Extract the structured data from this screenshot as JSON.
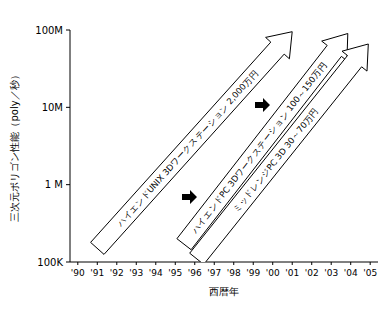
{
  "chart_data": {
    "type": "arrow",
    "x_label": "西暦年",
    "y_label": "三次元ポリゴン性能（poly／秒）",
    "log": "y",
    "xlim": [
      1989.6,
      2005.4
    ],
    "ylim": [
      100000,
      100000000
    ],
    "xticks": [
      {
        "value": 1990,
        "label": "'90"
      },
      {
        "value": 1991,
        "label": "'91"
      },
      {
        "value": 1992,
        "label": "'92"
      },
      {
        "value": 1993,
        "label": "'93"
      },
      {
        "value": 1994,
        "label": "'94"
      },
      {
        "value": 1995,
        "label": "'95"
      },
      {
        "value": 1996,
        "label": "'96"
      },
      {
        "value": 1997,
        "label": "'97"
      },
      {
        "value": 1998,
        "label": "'98"
      },
      {
        "value": 1999,
        "label": "'99"
      },
      {
        "value": 2000,
        "label": "'00"
      },
      {
        "value": 2001,
        "label": "'01"
      },
      {
        "value": 2002,
        "label": "'02"
      },
      {
        "value": 2003,
        "label": "'03"
      },
      {
        "value": 2004,
        "label": "'04"
      },
      {
        "value": 2005,
        "label": "'05"
      }
    ],
    "yticks": [
      {
        "value": 100000,
        "label": "100K"
      },
      {
        "value": 1000000,
        "label": "1 M"
      },
      {
        "value": 10000000,
        "label": "10M"
      },
      {
        "value": 100000000,
        "label": "100M"
      }
    ],
    "series": [
      {
        "name": "ハイエンドUNIX 3Dワークステーション 2,000万円",
        "color": "#ffffff",
        "x": [
          1991,
          2001
        ],
        "values": [
          150000,
          95000000
        ]
      },
      {
        "name": "ハイエンドPC 3Dワークステーション 100～150万円",
        "color": "#ffffff",
        "x": [
          1995.45,
          2003.85
        ],
        "values": [
          170000,
          90000000
        ]
      },
      {
        "name": "ミッドレンジPC 3D 30～70万円",
        "color": "#ffffff",
        "x": [
          1996.1,
          2004.9
        ],
        "values": [
          110000,
          66000000
        ]
      }
    ]
  }
}
